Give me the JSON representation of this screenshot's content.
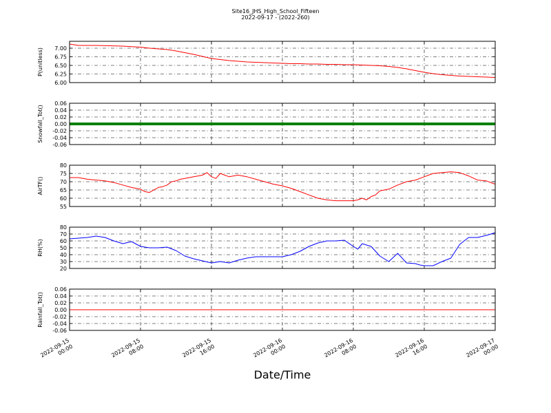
{
  "title": "Site16_JHS_High_School_Fifteen",
  "subtitle": "2022-09-17 - (2022-260)",
  "xlabel": "Date/Time",
  "chart_data": [
    {
      "type": "line",
      "ylabel": "P(unitless)",
      "ylim": [
        6.0,
        7.2
      ],
      "yticks": [
        "6.00",
        "6.25",
        "6.50",
        "6.75",
        "7.00"
      ],
      "ytick_values": [
        6.0,
        6.25,
        6.5,
        6.75,
        7.0
      ],
      "grid": true,
      "color": "#ff0000",
      "x": [
        0,
        1,
        3,
        6,
        8,
        9,
        10,
        11,
        12,
        13,
        14,
        15,
        16,
        17,
        18,
        19,
        20,
        21,
        22,
        23,
        24,
        25,
        26,
        27,
        28,
        29,
        30,
        31,
        32,
        33,
        34,
        35,
        36,
        37,
        38,
        39,
        40,
        41,
        42,
        43,
        44,
        45,
        46,
        47,
        48
      ],
      "y": [
        7.12,
        7.08,
        7.08,
        7.06,
        7.03,
        7.0,
        6.98,
        6.96,
        6.92,
        6.87,
        6.82,
        6.76,
        6.7,
        6.67,
        6.64,
        6.62,
        6.6,
        6.59,
        6.58,
        6.57,
        6.56,
        6.55,
        6.55,
        6.54,
        6.54,
        6.53,
        6.53,
        6.52,
        6.52,
        6.51,
        6.5,
        6.49,
        6.47,
        6.44,
        6.4,
        6.35,
        6.3,
        6.26,
        6.23,
        6.21,
        6.19,
        6.18,
        6.17,
        6.16,
        6.15
      ]
    },
    {
      "type": "line",
      "ylabel": "Snowfall_Tot()",
      "ylim": [
        -0.06,
        0.06
      ],
      "yticks": [
        "-0.06",
        "-0.04",
        "-0.02",
        "0.00",
        "0.02",
        "0.04",
        "0.06"
      ],
      "ytick_values": [
        -0.06,
        -0.04,
        -0.02,
        0.0,
        0.02,
        0.04,
        0.06
      ],
      "grid": true,
      "color": "#008000",
      "x": [
        0,
        48
      ],
      "y": [
        0.0,
        0.0
      ]
    },
    {
      "type": "line",
      "ylabel": "AirTF()",
      "ylim": [
        55,
        80
      ],
      "yticks": [
        "55",
        "60",
        "65",
        "70",
        "75",
        "80"
      ],
      "ytick_values": [
        55,
        60,
        65,
        70,
        75,
        80
      ],
      "grid": true,
      "color": "#ff0000",
      "x": [
        0,
        1,
        2,
        3,
        4,
        5,
        6,
        7,
        7.5,
        8,
        8.5,
        9,
        9.5,
        10,
        10.5,
        11,
        11.5,
        12,
        12.5,
        13,
        13.5,
        14,
        14.5,
        15,
        15.5,
        16,
        16.5,
        17,
        17.5,
        18,
        19,
        20,
        21,
        22,
        23,
        24,
        25,
        26,
        27,
        28,
        29,
        30,
        31,
        32,
        32.5,
        33,
        33.5,
        34,
        34.5,
        35,
        36,
        37,
        38,
        39,
        40,
        40.5,
        41,
        42,
        43,
        44,
        45,
        46,
        47,
        48
      ],
      "y": [
        72.5,
        72.5,
        71.5,
        71,
        70.5,
        69.5,
        68,
        66.5,
        66,
        65.5,
        64,
        63.5,
        65,
        66.5,
        67,
        68,
        70,
        70.5,
        71.5,
        72,
        72.5,
        73,
        73.5,
        74,
        75.5,
        73,
        72,
        75,
        74,
        73,
        74,
        73,
        71.5,
        70,
        68.5,
        67.5,
        66,
        64,
        62,
        60,
        59,
        58.5,
        58.5,
        58.5,
        59,
        60,
        59,
        61,
        62,
        64.5,
        65.5,
        68,
        70,
        71,
        73,
        74,
        75,
        75.5,
        76,
        75.5,
        73.5,
        71,
        70.5,
        68.5
      ]
    },
    {
      "type": "line",
      "ylabel": "RH(%)",
      "ylim": [
        20,
        80
      ],
      "yticks": [
        "20",
        "30",
        "40",
        "50",
        "60",
        "70",
        "80"
      ],
      "ytick_values": [
        20,
        30,
        40,
        50,
        60,
        70,
        80
      ],
      "grid": true,
      "color": "#0000ff",
      "x": [
        0,
        1,
        2,
        3,
        4,
        5,
        6,
        7,
        8,
        9,
        10,
        11,
        12,
        13,
        14,
        15,
        16,
        17,
        18,
        19,
        20,
        21,
        22,
        23,
        24,
        25,
        26,
        27,
        28,
        29,
        30,
        31,
        32,
        32.5,
        33,
        33.5,
        34,
        35,
        36,
        37,
        38,
        39,
        39.5,
        40,
        41,
        42,
        43,
        44,
        44.5,
        45,
        46,
        47,
        48
      ],
      "y": [
        63,
        64,
        65,
        67,
        65,
        60,
        56,
        59,
        52,
        50,
        50,
        51,
        46,
        38,
        34,
        31,
        28,
        30,
        28,
        32,
        35,
        37,
        37,
        37,
        37,
        40,
        45,
        52,
        57,
        60,
        60,
        61,
        52,
        48,
        56,
        54,
        52,
        38,
        30,
        42,
        28,
        27,
        25,
        24,
        24,
        30,
        35,
        55,
        60,
        65,
        65,
        68,
        72
      ]
    },
    {
      "type": "line",
      "ylabel": "Rainfall_Tot()",
      "ylim": [
        -0.06,
        0.06
      ],
      "yticks": [
        "-0.06",
        "-0.04",
        "-0.02",
        "0.00",
        "0.02",
        "0.04",
        "0.06"
      ],
      "ytick_values": [
        -0.06,
        -0.04,
        -0.02,
        0.0,
        0.02,
        0.04,
        0.06
      ],
      "grid": true,
      "color": "#ff0000",
      "x": [
        0,
        48
      ],
      "y": [
        0.0,
        0.0
      ]
    }
  ],
  "x_axis": {
    "xlim": [
      0,
      48
    ],
    "tick_values": [
      0,
      8,
      16,
      24,
      32,
      40,
      48
    ],
    "tick_labels": [
      [
        "2022-09-15",
        "00:00"
      ],
      [
        "2022-09-15",
        "08:00"
      ],
      [
        "2022-09-15",
        "16:00"
      ],
      [
        "2022-09-16",
        "00:00"
      ],
      [
        "2022-09-16",
        "08:00"
      ],
      [
        "2022-09-16",
        "16:00"
      ],
      [
        "2022-09-17",
        "00:00"
      ]
    ]
  }
}
